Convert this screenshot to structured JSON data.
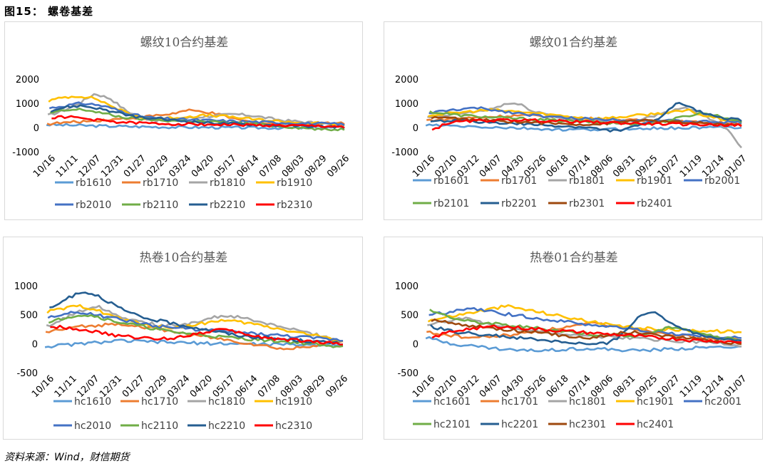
{
  "figure_title": "图15：  螺卷基差",
  "source": "资料来源：Wind，财信期货",
  "chart_data": [
    {
      "type": "line",
      "title": "螺纹10合约基差",
      "yticks": [
        "2000",
        "1000",
        "0",
        "-1000"
      ],
      "ylim": [
        -1000,
        2000
      ],
      "xticks": [
        "10/16",
        "11/11",
        "12/07",
        "12/31",
        "01/27",
        "02/29",
        "03/24",
        "04/20",
        "05/17",
        "06/14",
        "07/08",
        "08/03",
        "08/29",
        "09/26"
      ],
      "legend_position": "bottom",
      "series": [
        {
          "name": "rb1610",
          "color": "#5B9BD5",
          "values": [
            120,
            90,
            60,
            40,
            20,
            10,
            0,
            -10,
            -20,
            -10,
            0
          ]
        },
        {
          "name": "rb1710",
          "color": "#ED7D31",
          "values": [
            150,
            200,
            250,
            300,
            350,
            400,
            480,
            550,
            700,
            650,
            500,
            300,
            200,
            150,
            100,
            150,
            200,
            180
          ]
        },
        {
          "name": "rb1810",
          "color": "#A5A5A5",
          "values": [
            500,
            700,
            1000,
            1400,
            1200,
            700,
            400,
            300,
            300,
            400,
            450,
            500,
            550,
            500,
            400,
            300,
            250,
            200,
            150,
            120
          ]
        },
        {
          "name": "rb1910",
          "color": "#FFC000",
          "values": [
            1100,
            1250,
            1300,
            1200,
            900,
            600,
            400,
            350,
            400,
            450,
            500,
            480,
            420,
            350,
            300,
            250,
            200,
            180,
            150,
            120
          ]
        },
        {
          "name": "rb2010",
          "color": "#4472C4",
          "values": [
            800,
            900,
            1000,
            950,
            800,
            600,
            450,
            380,
            350,
            320,
            300,
            280,
            260,
            240,
            220,
            200,
            180,
            160,
            150,
            140
          ]
        },
        {
          "name": "rb2110",
          "color": "#70AD47",
          "values": [
            600,
            700,
            750,
            650,
            500,
            400,
            350,
            300,
            280,
            260,
            240,
            220,
            200,
            150,
            100,
            50,
            0,
            -50,
            -100,
            -50
          ]
        },
        {
          "name": "rb2210",
          "color": "#255E91",
          "values": [
            700,
            850,
            900,
            800,
            650,
            500,
            400,
            350,
            300,
            250,
            200,
            180,
            150,
            120,
            100,
            80,
            60,
            50,
            40,
            30
          ]
        },
        {
          "name": "rb2310",
          "color": "#FF0000",
          "values": [
            400,
            450,
            380,
            300,
            250,
            200,
            180,
            160,
            150,
            140,
            130,
            120,
            110,
            100,
            90,
            80,
            70,
            60,
            50,
            40
          ]
        }
      ]
    },
    {
      "type": "line",
      "title": "螺纹01合约基差",
      "yticks": [
        "2000",
        "1000",
        "0",
        "-1000"
      ],
      "ylim": [
        -1000,
        2000
      ],
      "xticks": [
        "10/16",
        "02/10",
        "03/12",
        "04/07",
        "04/30",
        "05/26",
        "06/18",
        "07/14",
        "08/06",
        "08/31",
        "09/25",
        "10/27",
        "11/19",
        "12/14",
        "01/07"
      ],
      "legend_position": "bottom",
      "series": [
        {
          "name": "rb1601",
          "color": "#5B9BD5",
          "values": [
            100,
            50,
            0,
            -50,
            -100,
            -80,
            -50,
            -20,
            0,
            20
          ]
        },
        {
          "name": "rb1701",
          "color": "#ED7D31",
          "values": [
            300,
            350,
            400,
            450,
            500,
            480,
            420,
            380,
            350,
            300,
            280,
            250,
            220,
            200,
            180
          ]
        },
        {
          "name": "rb1801",
          "color": "#A5A5A5",
          "values": [
            400,
            450,
            500,
            550,
            600,
            650,
            700,
            800,
            950,
            1000,
            900,
            700,
            600,
            500,
            400,
            350,
            300,
            280,
            250,
            220,
            200,
            250,
            300,
            400,
            500,
            600,
            700,
            800,
            700,
            500,
            300,
            100,
            -300,
            -800
          ]
        },
        {
          "name": "rb1901",
          "color": "#FFC000",
          "values": [
            500,
            550,
            600,
            650,
            700,
            720,
            680,
            650,
            600,
            550,
            500,
            450,
            400,
            380,
            400,
            450,
            500,
            550,
            600,
            650,
            700,
            500,
            400,
            300,
            250
          ]
        },
        {
          "name": "rb2001",
          "color": "#4472C4",
          "values": [
            600,
            650,
            700,
            750,
            780,
            800,
            760,
            700,
            650,
            600,
            550,
            500,
            450,
            420,
            400,
            380,
            360,
            350,
            340,
            330,
            320,
            310,
            300,
            290,
            280,
            270,
            260,
            250,
            240,
            230,
            220,
            210,
            200
          ]
        },
        {
          "name": "rb2101",
          "color": "#70AD47",
          "values": [
            650,
            600,
            550,
            500,
            480,
            450,
            420,
            400,
            380,
            360,
            340,
            320,
            300,
            280,
            260,
            240,
            220,
            200,
            180,
            160,
            150,
            160,
            200,
            300,
            400,
            500,
            600,
            550,
            450,
            350,
            250
          ]
        },
        {
          "name": "rb2201",
          "color": "#255E91",
          "values": [
            200,
            250,
            300,
            280,
            260,
            240,
            220,
            200,
            180,
            160,
            140,
            120,
            100,
            80,
            60,
            40,
            20,
            0,
            -50,
            -100,
            -120,
            -80,
            0,
            100,
            200,
            400,
            700,
            1000,
            900,
            700,
            600,
            500,
            400,
            350,
            300
          ]
        },
        {
          "name": "rb2301",
          "color": "#9E480E",
          "values": [
            400,
            420,
            380,
            350,
            320,
            300,
            280,
            260,
            240,
            220,
            200,
            180,
            160,
            150,
            140,
            130,
            150,
            200,
            250,
            300,
            280,
            260,
            240,
            220,
            200,
            180,
            160,
            140,
            120,
            100
          ]
        },
        {
          "name": "rb2401",
          "color": "#FF0000",
          "values": [
            -100,
            200,
            250,
            280,
            300,
            320,
            300,
            280,
            260,
            240,
            220,
            200,
            180,
            160,
            150,
            140,
            130,
            120,
            110,
            100
          ]
        }
      ]
    },
    {
      "type": "line",
      "title": "热卷10合约基差",
      "yticks": [
        "1000",
        "500",
        "0",
        "-500"
      ],
      "ylim": [
        -500,
        1000
      ],
      "xticks": [
        "10/16",
        "11/11",
        "12/07",
        "12/31",
        "01/27",
        "02/29",
        "03/24",
        "04/20",
        "05/17",
        "06/14",
        "07/08",
        "08/03",
        "08/29",
        "09/26"
      ],
      "legend_position": "bottom",
      "series": [
        {
          "name": "hc1610",
          "color": "#5B9BD5",
          "values": [
            -50,
            0,
            50,
            30,
            10,
            0,
            -10,
            -20,
            -10
          ]
        },
        {
          "name": "hc1710",
          "color": "#ED7D31",
          "values": [
            200,
            250,
            300,
            320,
            350,
            300,
            250,
            200,
            150,
            100,
            50,
            0,
            -50,
            -100,
            -50,
            0,
            50
          ]
        },
        {
          "name": "hc1810",
          "color": "#A5A5A5",
          "values": [
            300,
            400,
            500,
            600,
            650,
            550,
            450,
            400,
            350,
            300,
            320,
            350,
            400,
            450,
            480,
            450,
            400,
            350,
            300,
            250,
            200,
            150,
            100,
            50
          ]
        },
        {
          "name": "hc1910",
          "color": "#FFC000",
          "values": [
            550,
            600,
            650,
            600,
            500,
            400,
            350,
            300,
            280,
            300,
            350,
            400,
            380,
            350,
            300,
            250,
            200,
            150,
            100,
            50
          ]
        },
        {
          "name": "hc2010",
          "color": "#4472C4",
          "values": [
            450,
            500,
            550,
            500,
            450,
            400,
            350,
            300,
            280,
            260,
            240,
            220,
            200,
            180,
            160,
            140,
            120,
            100,
            80,
            60
          ]
        },
        {
          "name": "hc2110",
          "color": "#70AD47",
          "values": [
            350,
            450,
            500,
            480,
            400,
            350,
            300,
            250,
            200,
            180,
            150,
            120,
            100,
            80,
            60,
            40,
            20,
            0,
            -50,
            -30
          ]
        },
        {
          "name": "hc2210",
          "color": "#255E91",
          "values": [
            600,
            750,
            900,
            850,
            700,
            550,
            450,
            400,
            350,
            300,
            250,
            200,
            150,
            120,
            100,
            80,
            60,
            40,
            20,
            0
          ]
        },
        {
          "name": "hc2310",
          "color": "#FF0000",
          "values": [
            300,
            280,
            250,
            200,
            150,
            120,
            100,
            80,
            100,
            150,
            200,
            250,
            200,
            150,
            100,
            80,
            60,
            40,
            20,
            0
          ]
        }
      ]
    },
    {
      "type": "line",
      "title": "热卷01合约基差",
      "yticks": [
        "1000",
        "500",
        "0",
        "-500"
      ],
      "ylim": [
        -500,
        1000
      ],
      "xticks": [
        "10/16",
        "02/10",
        "03/12",
        "04/07",
        "04/30",
        "05/26",
        "06/18",
        "07/14",
        "08/06",
        "08/31",
        "09/25",
        "10/27",
        "11/19",
        "12/14",
        "01/07"
      ],
      "legend_position": "bottom",
      "series": [
        {
          "name": "hc1601",
          "color": "#5B9BD5",
          "values": [
            100,
            0,
            -50,
            -100,
            -120,
            -100,
            -80,
            -100,
            -120,
            -100,
            -80,
            -60,
            -50
          ]
        },
        {
          "name": "hc1701",
          "color": "#ED7D31",
          "values": [
            200,
            150,
            100,
            120,
            150,
            200,
            250,
            300,
            350,
            300,
            250,
            200,
            150,
            100,
            80,
            60
          ]
        },
        {
          "name": "hc1801",
          "color": "#A5A5A5",
          "values": [
            300,
            350,
            400,
            420,
            450,
            400,
            350,
            300,
            280,
            260,
            240,
            220,
            200,
            180,
            160,
            150,
            140,
            130,
            120,
            110,
            100,
            90,
            80,
            70,
            60,
            50,
            40,
            30,
            20,
            10,
            0,
            -20,
            -50
          ]
        },
        {
          "name": "hc1901",
          "color": "#FFC000",
          "values": [
            400,
            450,
            500,
            550,
            600,
            650,
            600,
            550,
            500,
            450,
            400,
            350,
            300,
            280,
            260,
            250,
            240,
            230,
            220,
            210,
            200
          ]
        },
        {
          "name": "hc2001",
          "color": "#4472C4",
          "values": [
            500,
            520,
            550,
            580,
            600,
            580,
            550,
            520,
            500,
            480,
            450,
            420,
            400,
            380,
            360,
            340,
            320,
            300,
            280,
            260,
            240,
            220,
            200,
            180,
            160,
            150,
            140,
            130,
            120,
            110,
            100
          ]
        },
        {
          "name": "hc2101",
          "color": "#70AD47",
          "values": [
            580,
            520,
            450,
            400,
            380,
            360,
            340,
            320,
            300,
            280,
            260,
            240,
            220,
            200,
            180,
            160,
            150,
            140,
            130,
            150,
            200,
            250,
            300,
            250,
            200,
            150,
            100,
            80,
            60
          ]
        },
        {
          "name": "hc2201",
          "color": "#255E91",
          "values": [
            300,
            250,
            200,
            180,
            160,
            140,
            120,
            100,
            80,
            60,
            40,
            20,
            0,
            -20,
            0,
            100,
            300,
            500,
            550,
            400,
            300,
            200,
            150,
            100,
            80,
            60
          ]
        },
        {
          "name": "hc2301",
          "color": "#9E480E",
          "values": [
            400,
            380,
            350,
            320,
            300,
            280,
            260,
            240,
            220,
            200,
            180,
            160,
            140,
            120,
            100,
            120,
            150,
            180,
            200,
            180,
            160,
            140,
            120,
            100,
            80,
            60,
            40,
            20,
            0
          ]
        },
        {
          "name": "hc2401",
          "color": "#FF0000",
          "values": [
            100,
            200,
            250,
            280,
            300,
            280,
            260,
            240,
            220,
            200,
            180,
            160,
            140,
            120,
            100,
            80,
            60,
            50,
            40,
            30
          ]
        }
      ]
    }
  ]
}
